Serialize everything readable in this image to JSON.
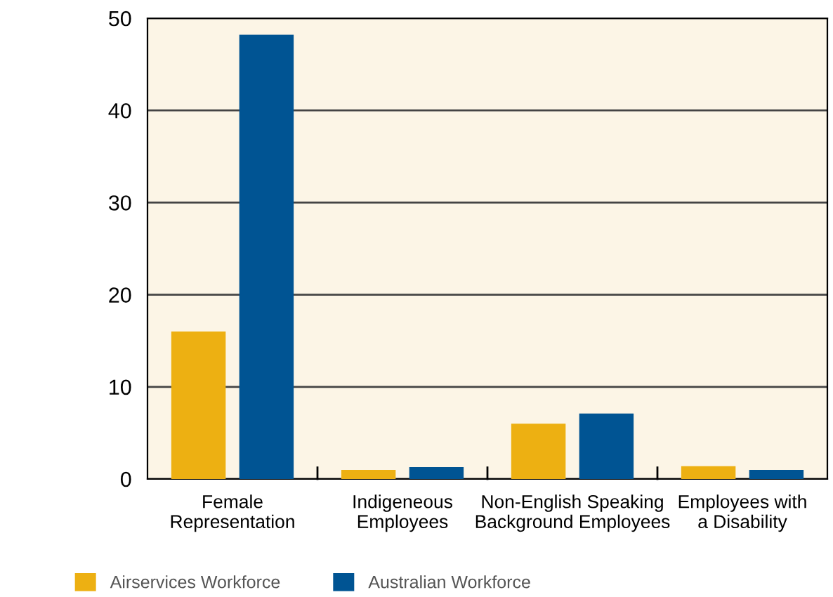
{
  "chart_data": {
    "type": "bar",
    "categories": [
      "Female\nRepresentation",
      "Indigeneous\nEmployees",
      "Non-English Speaking\nBackground Employees",
      "Employees with\na Disability"
    ],
    "series": [
      {
        "name": "Airservices Workforce",
        "color": "#edb012",
        "values": [
          16.0,
          1.0,
          6.0,
          1.4
        ]
      },
      {
        "name": "Australian Workforce",
        "color": "#005493",
        "values": [
          48.2,
          1.3,
          7.1,
          1.0
        ]
      }
    ],
    "ylim": [
      0,
      50
    ],
    "yticks": [
      0,
      10,
      20,
      30,
      40,
      50
    ],
    "grid": "y",
    "legend": "bottom left"
  }
}
